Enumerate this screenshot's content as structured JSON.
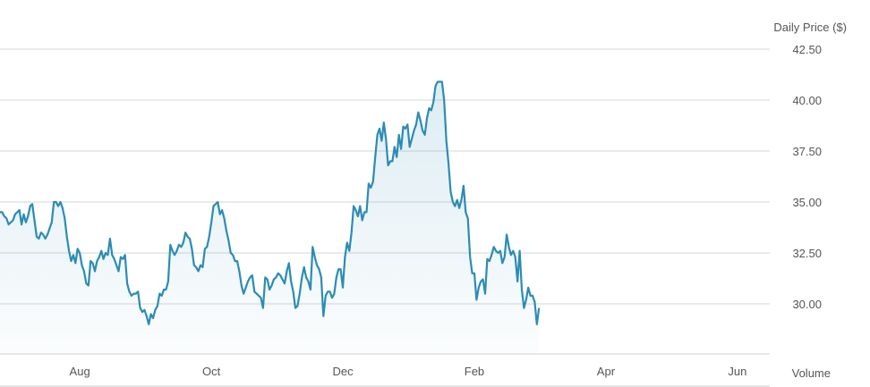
{
  "chart_data": {
    "type": "area",
    "ylabel": "Daily Price ($)",
    "lower_panel_label": "Volume",
    "y_ticks": [
      "42.50",
      "40.00",
      "37.50",
      "35.00",
      "32.50",
      "30.00"
    ],
    "y_tick_values": [
      42.5,
      40.0,
      37.5,
      35.0,
      32.5,
      30.0
    ],
    "ylim": [
      28.0,
      43.6
    ],
    "x_ticks": [
      "Aug",
      "Oct",
      "Dec",
      "Feb",
      "Apr",
      "Jun"
    ],
    "x_tick_positions": [
      15,
      76,
      137,
      198,
      259,
      320
    ],
    "x_range": [
      -22,
      335
    ],
    "series": [
      {
        "values": [
          [
            -22,
            34.5
          ],
          [
            -21,
            34.5
          ],
          [
            -20,
            34.3
          ],
          [
            -19,
            34.2
          ],
          [
            -18,
            33.9
          ],
          [
            -17,
            34.0
          ],
          [
            -16,
            34.1
          ],
          [
            -15,
            34.4
          ],
          [
            -14,
            34.5
          ],
          [
            -13,
            34.6
          ],
          [
            -12,
            33.9
          ],
          [
            -11,
            34.4
          ],
          [
            -10,
            34.0
          ],
          [
            -9,
            34.3
          ],
          [
            -8,
            34.8
          ],
          [
            -7,
            34.9
          ],
          [
            -6,
            34.1
          ],
          [
            -5,
            33.3
          ],
          [
            -4,
            33.2
          ],
          [
            -3,
            33.5
          ],
          [
            -2,
            33.4
          ],
          [
            -1,
            33.2
          ],
          [
            0,
            33.4
          ],
          [
            1,
            33.7
          ],
          [
            2,
            34.0
          ],
          [
            3,
            35.0
          ],
          [
            4,
            35.0
          ],
          [
            5,
            34.8
          ],
          [
            6,
            35.0
          ],
          [
            7,
            34.7
          ],
          [
            8,
            34.2
          ],
          [
            9,
            33.3
          ],
          [
            10,
            32.6
          ],
          [
            11,
            32.1
          ],
          [
            12,
            32.4
          ],
          [
            13,
            32.0
          ],
          [
            14,
            32.7
          ],
          [
            15,
            32.5
          ],
          [
            16,
            31.9
          ],
          [
            17,
            31.6
          ],
          [
            18,
            31.0
          ],
          [
            19,
            30.9
          ],
          [
            20,
            32.1
          ],
          [
            21,
            32.0
          ],
          [
            22,
            31.6
          ],
          [
            23,
            32.1
          ],
          [
            24,
            32.3
          ],
          [
            25,
            32.6
          ],
          [
            26,
            32.2
          ],
          [
            27,
            32.5
          ],
          [
            28,
            32.4
          ],
          [
            29,
            33.2
          ],
          [
            30,
            32.4
          ],
          [
            31,
            32.2
          ],
          [
            32,
            31.9
          ],
          [
            33,
            31.6
          ],
          [
            34,
            32.3
          ],
          [
            35,
            32.2
          ],
          [
            36,
            32.4
          ],
          [
            37,
            31.0
          ],
          [
            38,
            30.6
          ],
          [
            39,
            30.4
          ],
          [
            40,
            30.5
          ],
          [
            41,
            30.5
          ],
          [
            42,
            30.6
          ],
          [
            43,
            29.8
          ],
          [
            44,
            29.6
          ],
          [
            45,
            29.7
          ],
          [
            46,
            29.4
          ],
          [
            47,
            29.0
          ],
          [
            48,
            29.5
          ],
          [
            49,
            29.3
          ],
          [
            50,
            29.7
          ],
          [
            51,
            29.9
          ],
          [
            52,
            30.5
          ],
          [
            53,
            30.4
          ],
          [
            54,
            30.7
          ],
          [
            55,
            30.7
          ],
          [
            56,
            31.1
          ],
          [
            57,
            32.9
          ],
          [
            58,
            32.6
          ],
          [
            59,
            32.4
          ],
          [
            60,
            32.6
          ],
          [
            61,
            32.9
          ],
          [
            62,
            32.8
          ],
          [
            63,
            33.0
          ],
          [
            64,
            33.5
          ],
          [
            65,
            33.3
          ],
          [
            66,
            33.2
          ],
          [
            67,
            32.7
          ],
          [
            68,
            31.9
          ],
          [
            69,
            31.8
          ],
          [
            70,
            31.6
          ],
          [
            71,
            31.9
          ],
          [
            72,
            31.8
          ],
          [
            73,
            32.7
          ],
          [
            74,
            32.8
          ],
          [
            75,
            33.3
          ],
          [
            76,
            34.0
          ],
          [
            77,
            34.8
          ],
          [
            78,
            34.9
          ],
          [
            79,
            35.0
          ],
          [
            80,
            34.4
          ],
          [
            81,
            34.6
          ],
          [
            82,
            34.2
          ],
          [
            83,
            33.6
          ],
          [
            84,
            33.1
          ],
          [
            85,
            32.5
          ],
          [
            86,
            32.4
          ],
          [
            87,
            32.1
          ],
          [
            88,
            32.1
          ],
          [
            89,
            31.6
          ],
          [
            90,
            30.9
          ],
          [
            91,
            30.5
          ],
          [
            92,
            30.8
          ],
          [
            93,
            31.1
          ],
          [
            94,
            31.3
          ],
          [
            95,
            31.4
          ],
          [
            96,
            30.6
          ],
          [
            97,
            30.5
          ],
          [
            98,
            30.4
          ],
          [
            99,
            30.3
          ],
          [
            100,
            29.8
          ],
          [
            101,
            31.3
          ],
          [
            102,
            31.2
          ],
          [
            103,
            30.7
          ],
          [
            104,
            30.9
          ],
          [
            105,
            31.2
          ],
          [
            106,
            31.3
          ],
          [
            107,
            31.5
          ],
          [
            108,
            31.4
          ],
          [
            109,
            31.2
          ],
          [
            110,
            31.0
          ],
          [
            111,
            31.6
          ],
          [
            112,
            32.0
          ],
          [
            113,
            31.1
          ],
          [
            114,
            30.6
          ],
          [
            115,
            29.8
          ],
          [
            116,
            29.9
          ],
          [
            117,
            30.5
          ],
          [
            118,
            31.3
          ],
          [
            119,
            31.8
          ],
          [
            120,
            31.3
          ],
          [
            121,
            31.1
          ],
          [
            122,
            30.7
          ],
          [
            123,
            32.8
          ],
          [
            124,
            32.3
          ],
          [
            125,
            31.9
          ],
          [
            126,
            31.7
          ],
          [
            127,
            31.3
          ],
          [
            128,
            29.4
          ],
          [
            129,
            30.4
          ],
          [
            130,
            30.6
          ],
          [
            131,
            30.6
          ],
          [
            132,
            30.3
          ],
          [
            133,
            30.5
          ],
          [
            134,
            31.3
          ],
          [
            135,
            31.7
          ],
          [
            136,
            31.7
          ],
          [
            137,
            30.8
          ],
          [
            138,
            32.3
          ],
          [
            139,
            33.0
          ],
          [
            140,
            32.6
          ],
          [
            141,
            33.5
          ],
          [
            142,
            34.8
          ],
          [
            143,
            34.6
          ],
          [
            144,
            34.3
          ],
          [
            145,
            34.8
          ],
          [
            146,
            34.1
          ],
          [
            147,
            34.5
          ],
          [
            148,
            34.5
          ],
          [
            149,
            35.9
          ],
          [
            150,
            35.7
          ],
          [
            151,
            36.0
          ],
          [
            152,
            37.2
          ],
          [
            153,
            38.3
          ],
          [
            154,
            38.6
          ],
          [
            155,
            38.0
          ],
          [
            156,
            38.9
          ],
          [
            157,
            38.1
          ],
          [
            158,
            36.8
          ],
          [
            159,
            37.0
          ],
          [
            160,
            37.0
          ],
          [
            161,
            37.7
          ],
          [
            162,
            37.2
          ],
          [
            163,
            38.3
          ],
          [
            164,
            37.6
          ],
          [
            165,
            38.7
          ],
          [
            166,
            38.6
          ],
          [
            167,
            38.8
          ],
          [
            168,
            37.7
          ],
          [
            169,
            38.1
          ],
          [
            170,
            38.5
          ],
          [
            171,
            38.8
          ],
          [
            172,
            39.4
          ],
          [
            173,
            39.0
          ],
          [
            174,
            38.5
          ],
          [
            175,
            38.3
          ],
          [
            176,
            39.1
          ],
          [
            177,
            39.6
          ],
          [
            178,
            39.5
          ],
          [
            179,
            39.9
          ],
          [
            180,
            40.7
          ],
          [
            181,
            40.9
          ],
          [
            182,
            40.9
          ],
          [
            183,
            40.9
          ],
          [
            184,
            40.0
          ],
          [
            185,
            38.0
          ],
          [
            186,
            36.9
          ],
          [
            187,
            35.5
          ],
          [
            188,
            35.0
          ],
          [
            189,
            34.8
          ],
          [
            190,
            35.1
          ],
          [
            191,
            34.7
          ],
          [
            192,
            35.1
          ],
          [
            193,
            35.8
          ],
          [
            194,
            34.5
          ],
          [
            195,
            34.2
          ],
          [
            196,
            32.3
          ],
          [
            197,
            31.5
          ],
          [
            198,
            31.5
          ],
          [
            199,
            30.2
          ],
          [
            200,
            30.8
          ],
          [
            201,
            31.1
          ],
          [
            202,
            31.2
          ],
          [
            203,
            30.5
          ],
          [
            204,
            32.2
          ],
          [
            205,
            32.1
          ],
          [
            206,
            32.4
          ],
          [
            207,
            32.8
          ],
          [
            208,
            32.6
          ],
          [
            209,
            32.5
          ],
          [
            210,
            32.6
          ],
          [
            211,
            32.0
          ],
          [
            212,
            32.3
          ],
          [
            213,
            33.4
          ],
          [
            214,
            32.8
          ],
          [
            215,
            32.4
          ],
          [
            216,
            32.6
          ],
          [
            217,
            32.3
          ],
          [
            218,
            31.1
          ],
          [
            219,
            32.6
          ],
          [
            220,
            30.7
          ],
          [
            221,
            29.8
          ],
          [
            222,
            30.2
          ],
          [
            223,
            30.8
          ],
          [
            224,
            30.4
          ],
          [
            225,
            30.4
          ],
          [
            226,
            30.1
          ],
          [
            227,
            29.0
          ],
          [
            228,
            29.8
          ]
        ]
      }
    ]
  }
}
